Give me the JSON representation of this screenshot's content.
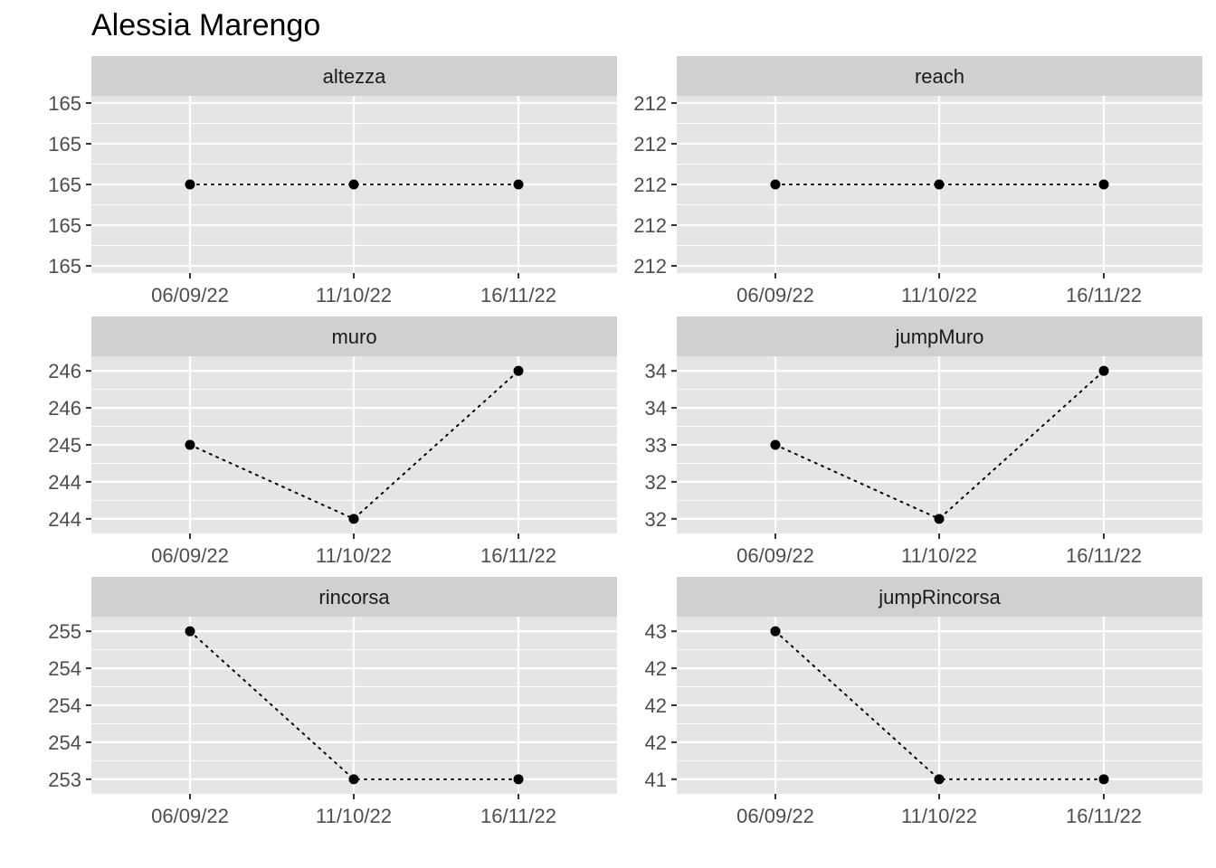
{
  "title": "Alessia Marengo",
  "chart_data": {
    "type": "line",
    "title": "Alessia Marengo",
    "facets": [
      "altezza",
      "reach",
      "muro",
      "jumpMuro",
      "rincorsa",
      "jumpRincorsa"
    ],
    "x": [
      "06/09/22",
      "11/10/22",
      "16/11/22"
    ],
    "line_style": "dotted",
    "colors": {
      "panel_bg": "#e5e5e5",
      "strip_bg": "#d0d0d0",
      "grid": "#ffffff",
      "points": "#000000"
    },
    "panels": [
      {
        "name": "altezza",
        "values": [
          165,
          165,
          165
        ],
        "ylim": [
          164.96,
          165.04
        ],
        "yticks": [
          164.96,
          164.98,
          165.0,
          165.02,
          165.04
        ],
        "yticklabels": [
          "165",
          "165",
          "165",
          "165",
          "165"
        ]
      },
      {
        "name": "reach",
        "values": [
          212,
          212,
          212
        ],
        "ylim": [
          211.96,
          212.04
        ],
        "yticks": [
          211.96,
          211.98,
          212.0,
          212.02,
          212.04
        ],
        "yticklabels": [
          "212",
          "212",
          "212",
          "212",
          "212"
        ]
      },
      {
        "name": "muro",
        "values": [
          245,
          244,
          246
        ],
        "ylim": [
          243.9,
          246.1
        ],
        "yticks": [
          244.0,
          244.5,
          245.0,
          245.5,
          246.0
        ],
        "yticklabels": [
          "244",
          "244",
          "245",
          "246",
          "246"
        ]
      },
      {
        "name": "jumpMuro",
        "values": [
          33,
          32,
          34
        ],
        "ylim": [
          31.9,
          34.1
        ],
        "yticks": [
          32.0,
          32.5,
          33.0,
          33.5,
          34.0
        ],
        "yticklabels": [
          "32",
          "32",
          "33",
          "34",
          "34"
        ]
      },
      {
        "name": "rincorsa",
        "values": [
          255,
          253,
          253
        ],
        "ylim": [
          252.9,
          255.1
        ],
        "yticks": [
          253.0,
          253.5,
          254.0,
          254.5,
          255.0
        ],
        "yticklabels": [
          "253",
          "254",
          "254",
          "254",
          "255"
        ]
      },
      {
        "name": "jumpRincorsa",
        "values": [
          43,
          41,
          41
        ],
        "ylim": [
          40.9,
          43.1
        ],
        "yticks": [
          41.0,
          41.5,
          42.0,
          42.5,
          43.0
        ],
        "yticklabels": [
          "41",
          "42",
          "42",
          "42",
          "43"
        ]
      }
    ]
  }
}
